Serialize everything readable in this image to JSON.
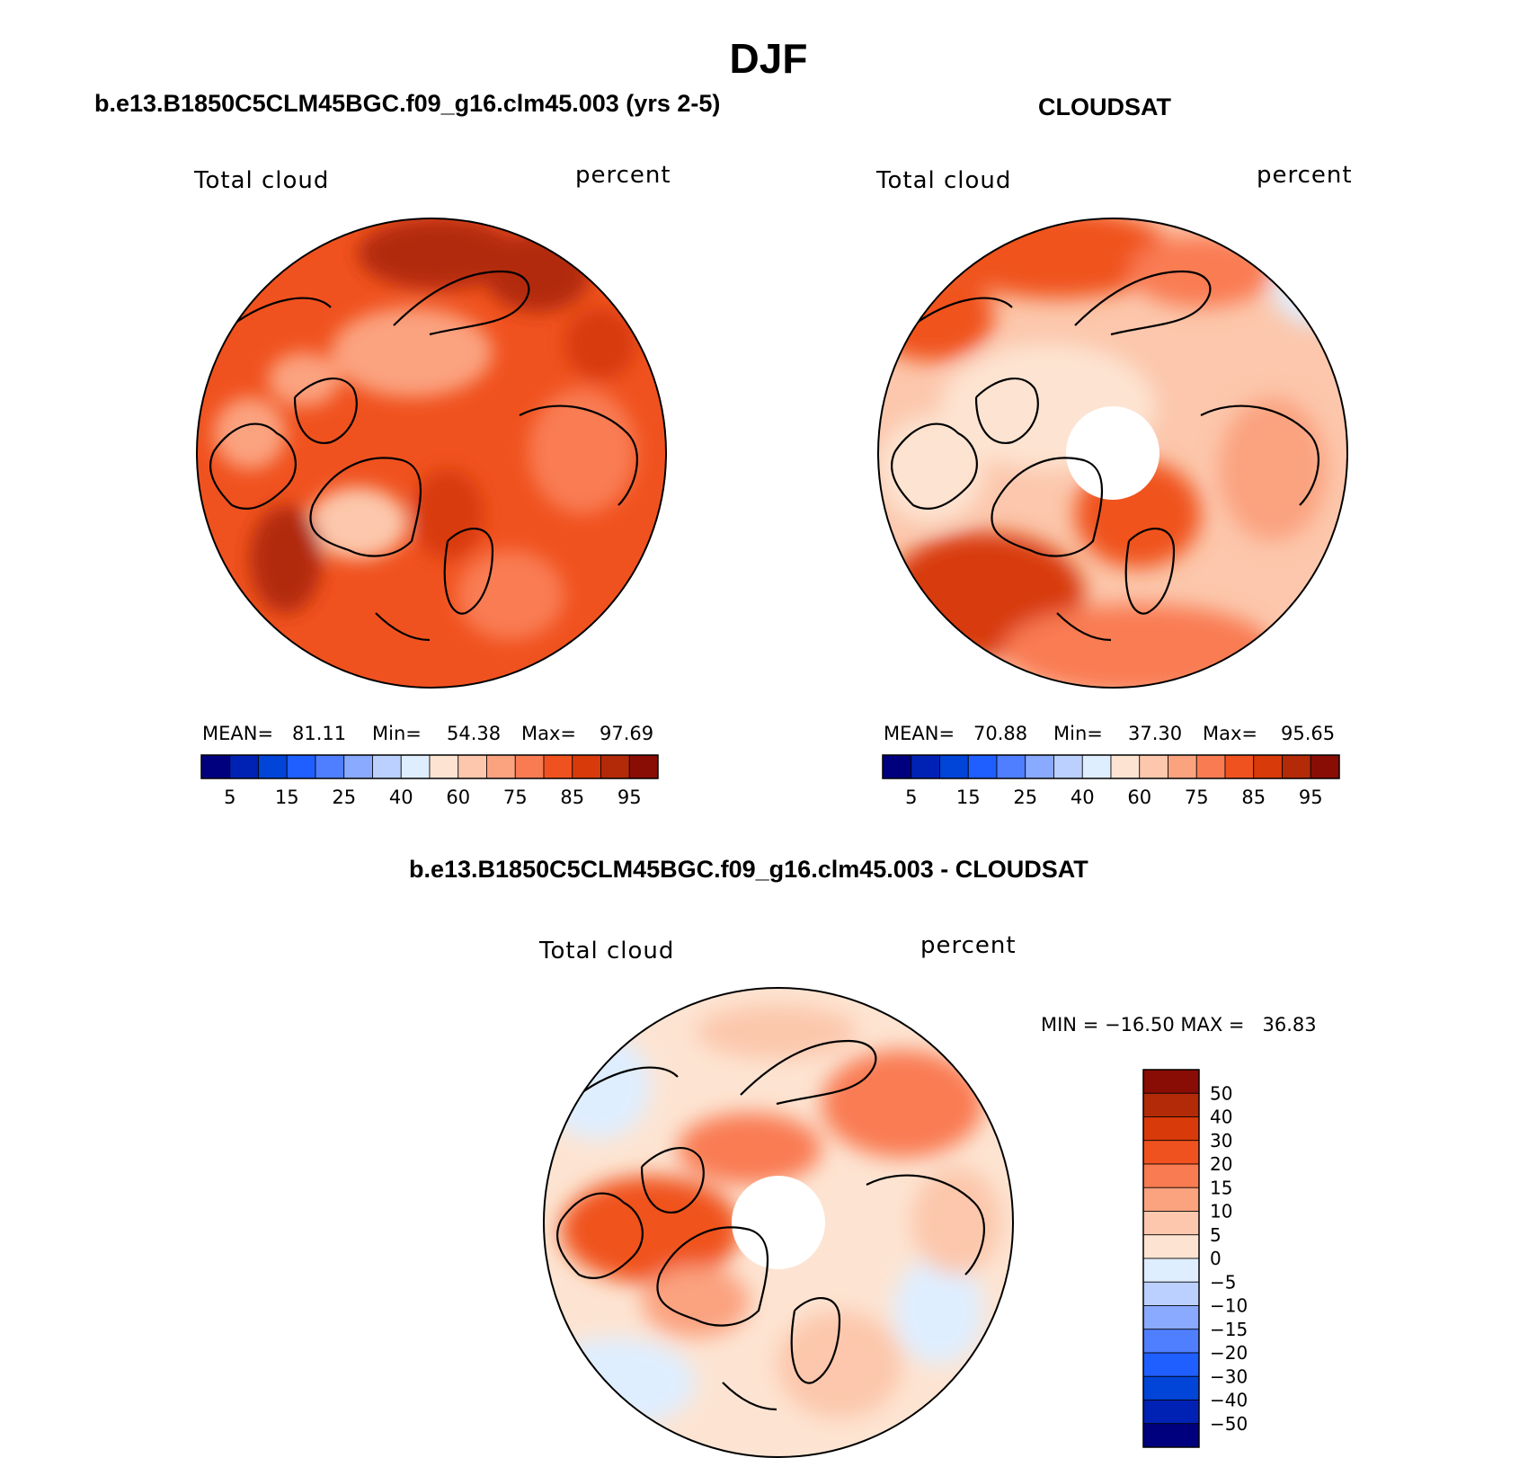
{
  "figure": {
    "title": "DJF"
  },
  "panels": [
    {
      "title": "b.e13.B1850C5CLM45BGC.f09_g16.clm45.003 (yrs 2-5)",
      "left_label": "Total cloud",
      "right_label": "percent",
      "stats": {
        "mean_label": "MEAN=",
        "mean": "81.11",
        "min_label": "Min=",
        "min": "54.38",
        "max_label": "Max=",
        "max": "97.69"
      },
      "colorbar_ticks": [
        "5",
        "15",
        "25",
        "40",
        "60",
        "75",
        "85",
        "95"
      ]
    },
    {
      "title": "CLOUDSAT",
      "left_label": "Total cloud",
      "right_label": "percent",
      "stats": {
        "mean_label": "MEAN=",
        "mean": "70.88",
        "min_label": "Min=",
        "min": "37.30",
        "max_label": "Max=",
        "max": "95.65"
      },
      "colorbar_ticks": [
        "5",
        "15",
        "25",
        "40",
        "60",
        "75",
        "85",
        "95"
      ]
    },
    {
      "title": "b.e13.B1850C5CLM45BGC.f09_g16.clm45.003 - CLOUDSAT",
      "left_label": "Total cloud",
      "right_label": "percent",
      "minmax": "MIN = −16.50 MAX =   36.83",
      "colorbar_ticks": [
        "50",
        "40",
        "30",
        "20",
        "15",
        "10",
        "5",
        "0",
        "−5",
        "−10",
        "−15",
        "−20",
        "−30",
        "−40",
        "−50"
      ]
    }
  ],
  "palettes": {
    "absolute": [
      "#00007f",
      "#0022b4",
      "#0044d8",
      "#1f5eff",
      "#4f7fff",
      "#8aaaff",
      "#bcd0ff",
      "#dfeeff",
      "#fde4d2",
      "#fcc7ac",
      "#fba27f",
      "#f97b52",
      "#f0521f",
      "#d83a0a",
      "#b22a08",
      "#8a0d05"
    ],
    "difference": [
      "#8a0d05",
      "#b22a08",
      "#d83a0a",
      "#f0521f",
      "#f97b52",
      "#fba27f",
      "#fcc7ac",
      "#fde4d2",
      "#dfeeff",
      "#bcd0ff",
      "#8aaaff",
      "#4f7fff",
      "#1f5eff",
      "#0044d8",
      "#0022b4",
      "#00007f"
    ]
  }
}
